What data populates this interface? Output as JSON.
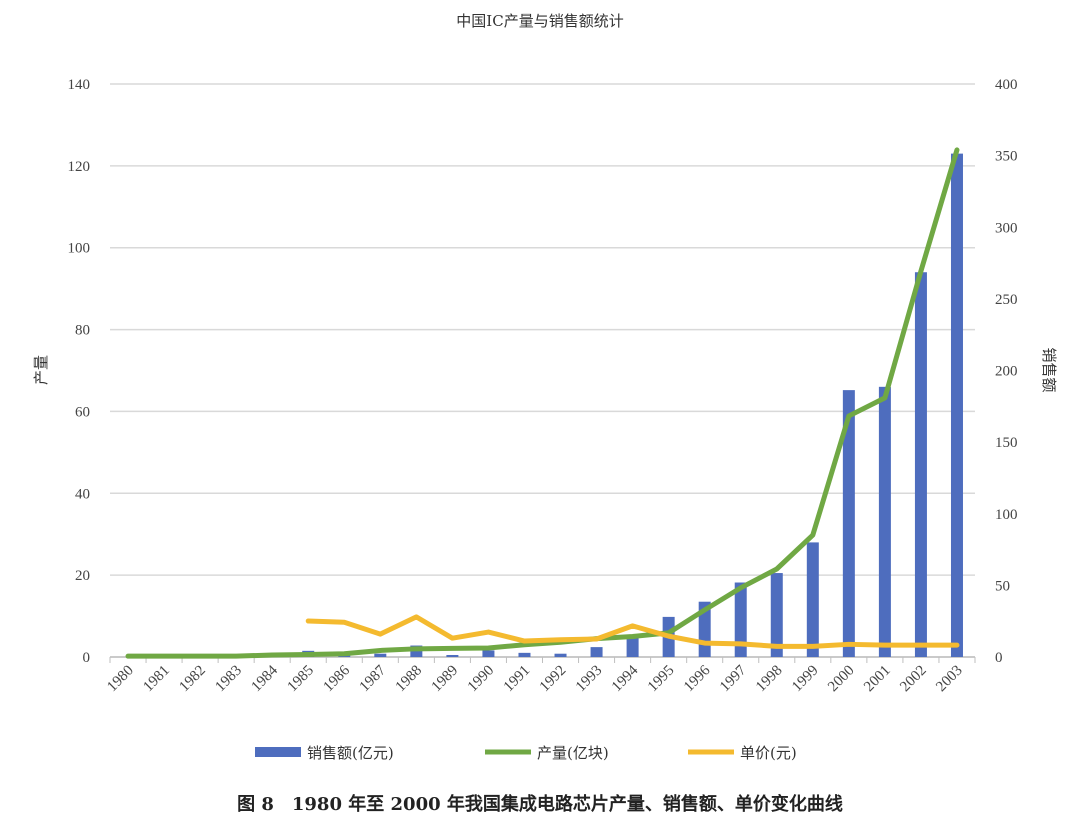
{
  "chart_data": {
    "type": "bar+line",
    "title": "中国IC产量与销售额统计",
    "caption": "图 8　1980 年至 2000 年我国集成电路芯片产量、销售额、单价变化曲线",
    "ylabel_left": "产量",
    "ylabel_right": "销售额",
    "ylim_left": [
      0,
      140
    ],
    "yticks_left": [
      0,
      20,
      40,
      60,
      80,
      100,
      120,
      140
    ],
    "ylim_right": [
      0,
      400
    ],
    "yticks_right": [
      0,
      50,
      100,
      150,
      200,
      250,
      300,
      350,
      400
    ],
    "grid": true,
    "legend_position": "bottom",
    "categories": [
      "1980",
      "1981",
      "1982",
      "1983",
      "1984",
      "1985",
      "1986",
      "1987",
      "1988",
      "1989",
      "1990",
      "1991",
      "1992",
      "1993",
      "1994",
      "1995",
      "1996",
      "1997",
      "1998",
      "1999",
      "2000",
      "2001",
      "2002",
      "2003"
    ],
    "series": [
      {
        "name": "销售额(亿元)",
        "type": "bar",
        "axis": "right",
        "color": "#4E6DBE",
        "values": [
          0,
          0,
          0,
          0,
          0,
          4.3,
          3.4,
          2.3,
          8.0,
          1.4,
          4.6,
          2.9,
          2.3,
          6.9,
          14.9,
          28,
          38.6,
          52,
          58.6,
          80,
          186.3,
          188.6,
          268.6,
          351.4
        ]
      },
      {
        "name": "产量(亿块)",
        "type": "line",
        "axis": "left",
        "color": "#70A844",
        "values": [
          0.2,
          0.2,
          0.2,
          0.2,
          0.5,
          0.6,
          0.8,
          1.6,
          2.0,
          2.1,
          2.2,
          3.0,
          3.6,
          4.5,
          5.0,
          5.9,
          11.5,
          16.9,
          21.5,
          29.8,
          58.9,
          63.3,
          94.3,
          123.9
        ]
      },
      {
        "name": "单价(元)",
        "type": "line",
        "axis": "left",
        "color": "#F4BA2F",
        "values": [
          null,
          null,
          null,
          null,
          null,
          8.8,
          8.5,
          5.6,
          9.8,
          4.6,
          6.1,
          3.9,
          4.2,
          4.4,
          7.6,
          5.1,
          3.4,
          3.2,
          2.6,
          2.6,
          3.1,
          2.9,
          2.9,
          2.9
        ]
      }
    ]
  }
}
